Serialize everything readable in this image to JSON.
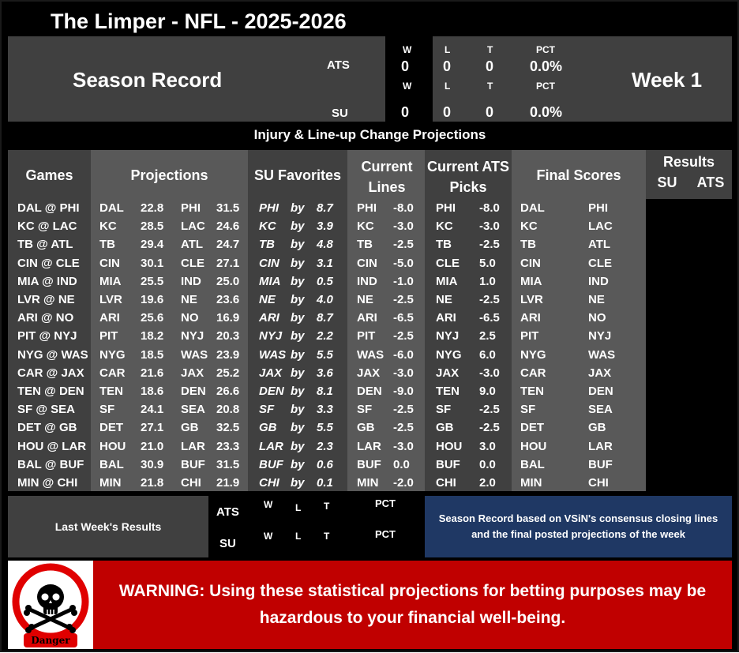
{
  "title": "The Limper - NFL - 2025-2026",
  "season": {
    "label": "Season Record",
    "week": "Week 1",
    "ats_label": "ATS",
    "su_label": "SU",
    "col_w": "W",
    "col_l": "L",
    "col_t": "T",
    "col_pct": "PCT",
    "ats": {
      "w": "0",
      "l": "0",
      "t": "0",
      "pct": "0.0%"
    },
    "su": {
      "w": "0",
      "l": "0",
      "t": "0",
      "pct": "0.0%"
    }
  },
  "injury_banner": "Injury & Line-up Change Projections",
  "headers": {
    "games": "Games",
    "projections": "Projections",
    "su_favorites": "SU Favorites",
    "current_lines": "Current Lines",
    "current_ats": "Current ATS Picks",
    "final_scores": "Final Scores",
    "results": "Results",
    "results_su": "SU",
    "results_ats": "ATS"
  },
  "games": [
    {
      "game": "DAL @ PHI",
      "a": "DAL",
      "ap": "22.8",
      "h": "PHI",
      "hp": "31.5",
      "fav": "PHI",
      "by": "by",
      "margin": "8.7",
      "lt": "PHI",
      "lv": "-8.0",
      "pt": "PHI",
      "pv": "-8.0",
      "fa": "DAL",
      "fh": "PHI"
    },
    {
      "game": "KC @ LAC",
      "a": "KC",
      "ap": "28.5",
      "h": "LAC",
      "hp": "24.6",
      "fav": "KC",
      "by": "by",
      "margin": "3.9",
      "lt": "KC",
      "lv": "-3.0",
      "pt": "KC",
      "pv": "-3.0",
      "fa": "KC",
      "fh": "LAC"
    },
    {
      "game": "TB @ ATL",
      "a": "TB",
      "ap": "29.4",
      "h": "ATL",
      "hp": "24.7",
      "fav": "TB",
      "by": "by",
      "margin": "4.8",
      "lt": "TB",
      "lv": "-2.5",
      "pt": "TB",
      "pv": "-2.5",
      "fa": "TB",
      "fh": "ATL"
    },
    {
      "game": "CIN @ CLE",
      "a": "CIN",
      "ap": "30.1",
      "h": "CLE",
      "hp": "27.1",
      "fav": "CIN",
      "by": "by",
      "margin": "3.1",
      "lt": "CIN",
      "lv": "-5.0",
      "pt": "CLE",
      "pv": "5.0",
      "fa": "CIN",
      "fh": "CLE"
    },
    {
      "game": "MIA @ IND",
      "a": "MIA",
      "ap": "25.5",
      "h": "IND",
      "hp": "25.0",
      "fav": "MIA",
      "by": "by",
      "margin": "0.5",
      "lt": "IND",
      "lv": "-1.0",
      "pt": "MIA",
      "pv": "1.0",
      "fa": "MIA",
      "fh": "IND"
    },
    {
      "game": "LVR @ NE",
      "a": "LVR",
      "ap": "19.6",
      "h": "NE",
      "hp": "23.6",
      "fav": "NE",
      "by": "by",
      "margin": "4.0",
      "lt": "NE",
      "lv": "-2.5",
      "pt": "NE",
      "pv": "-2.5",
      "fa": "LVR",
      "fh": "NE"
    },
    {
      "game": "ARI @ NO",
      "a": "ARI",
      "ap": "25.6",
      "h": "NO",
      "hp": "16.9",
      "fav": "ARI",
      "by": "by",
      "margin": "8.7",
      "lt": "ARI",
      "lv": "-6.5",
      "pt": "ARI",
      "pv": "-6.5",
      "fa": "ARI",
      "fh": "NO"
    },
    {
      "game": "PIT @ NYJ",
      "a": "PIT",
      "ap": "18.2",
      "h": "NYJ",
      "hp": "20.3",
      "fav": "NYJ",
      "by": "by",
      "margin": "2.2",
      "lt": "PIT",
      "lv": "-2.5",
      "pt": "NYJ",
      "pv": "2.5",
      "fa": "PIT",
      "fh": "NYJ"
    },
    {
      "game": "NYG @ WAS",
      "a": "NYG",
      "ap": "18.5",
      "h": "WAS",
      "hp": "23.9",
      "fav": "WAS",
      "by": "by",
      "margin": "5.5",
      "lt": "WAS",
      "lv": "-6.0",
      "pt": "NYG",
      "pv": "6.0",
      "fa": "NYG",
      "fh": "WAS"
    },
    {
      "game": "CAR @ JAX",
      "a": "CAR",
      "ap": "21.6",
      "h": "JAX",
      "hp": "25.2",
      "fav": "JAX",
      "by": "by",
      "margin": "3.6",
      "lt": "JAX",
      "lv": "-3.0",
      "pt": "JAX",
      "pv": "-3.0",
      "fa": "CAR",
      "fh": "JAX"
    },
    {
      "game": "TEN @ DEN",
      "a": "TEN",
      "ap": "18.6",
      "h": "DEN",
      "hp": "26.6",
      "fav": "DEN",
      "by": "by",
      "margin": "8.1",
      "lt": "DEN",
      "lv": "-9.0",
      "pt": "TEN",
      "pv": "9.0",
      "fa": "TEN",
      "fh": "DEN"
    },
    {
      "game": "SF @ SEA",
      "a": "SF",
      "ap": "24.1",
      "h": "SEA",
      "hp": "20.8",
      "fav": "SF",
      "by": "by",
      "margin": "3.3",
      "lt": "SF",
      "lv": "-2.5",
      "pt": "SF",
      "pv": "-2.5",
      "fa": "SF",
      "fh": "SEA"
    },
    {
      "game": "DET @ GB",
      "a": "DET",
      "ap": "27.1",
      "h": "GB",
      "hp": "32.5",
      "fav": "GB",
      "by": "by",
      "margin": "5.5",
      "lt": "GB",
      "lv": "-2.5",
      "pt": "GB",
      "pv": "-2.5",
      "fa": "DET",
      "fh": "GB"
    },
    {
      "game": "HOU @ LAR",
      "a": "HOU",
      "ap": "21.0",
      "h": "LAR",
      "hp": "23.3",
      "fav": "LAR",
      "by": "by",
      "margin": "2.3",
      "lt": "LAR",
      "lv": "-3.0",
      "pt": "HOU",
      "pv": "3.0",
      "fa": "HOU",
      "fh": "LAR"
    },
    {
      "game": "BAL @ BUF",
      "a": "BAL",
      "ap": "30.9",
      "h": "BUF",
      "hp": "31.5",
      "fav": "BUF",
      "by": "by",
      "margin": "0.6",
      "lt": "BUF",
      "lv": "0.0",
      "pt": "BUF",
      "pv": "0.0",
      "fa": "BAL",
      "fh": "BUF"
    },
    {
      "game": "MIN @ CHI",
      "a": "MIN",
      "ap": "21.8",
      "h": "CHI",
      "hp": "21.9",
      "fav": "CHI",
      "by": "by",
      "margin": "0.1",
      "lt": "MIN",
      "lv": "-2.0",
      "pt": "CHI",
      "pv": "2.0",
      "fa": "MIN",
      "fh": "CHI"
    }
  ],
  "last_week": {
    "label": "Last Week's Results",
    "ats_label": "ATS",
    "su_label": "SU",
    "col_w": "W",
    "col_l": "L",
    "col_t": "T",
    "col_pct": "PCT"
  },
  "note": "Season Record based on VSiN's consensus closing lines and the final posted projections of the week",
  "warning": "WARNING: Using these statistical projections for betting purposes may be hazardous to your financial well-being.",
  "danger_label": "Danger",
  "icons": {
    "danger": "skull-crossbones-icon"
  },
  "colors": {
    "dark_gray": "#404040",
    "mid_gray": "#595959",
    "navy": "#1f3864",
    "red": "#c00000"
  }
}
